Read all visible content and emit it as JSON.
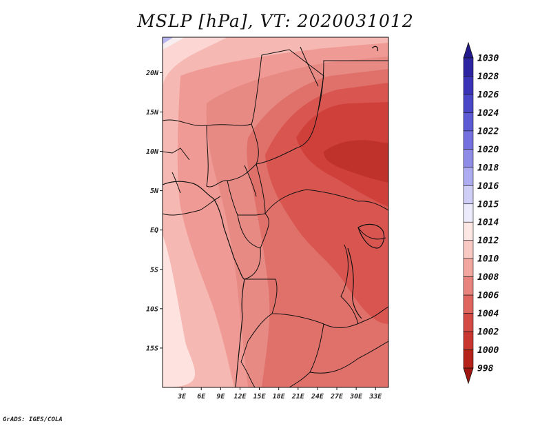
{
  "title": "MSLP [hPa], VT: 2020031012",
  "credit": "GrADS: IGES/COLA",
  "map": {
    "lat_labels": [
      "20N",
      "15N",
      "10N",
      "5N",
      "EQ",
      "5S",
      "10S",
      "15S"
    ],
    "lat_values": [
      20,
      15,
      10,
      5,
      0,
      -5,
      -10,
      -15
    ],
    "lon_labels": [
      "3E",
      "6E",
      "9E",
      "12E",
      "15E",
      "18E",
      "21E",
      "24E",
      "27E",
      "30E",
      "33E"
    ],
    "lon_values": [
      3,
      6,
      9,
      12,
      15,
      18,
      21,
      24,
      27,
      30,
      33
    ],
    "lat_range": [
      -20,
      24.5
    ],
    "lon_range": [
      0,
      35
    ]
  },
  "colorbar": {
    "labels": [
      "1030",
      "1028",
      "1026",
      "1024",
      "1022",
      "1020",
      "1018",
      "1016",
      "1015",
      "1014",
      "1012",
      "1010",
      "1008",
      "1006",
      "1004",
      "1002",
      "1000",
      "998"
    ],
    "colors": [
      "#221a8c",
      "#2d24a3",
      "#3a33b8",
      "#4a46c8",
      "#5d5ad6",
      "#7470e0",
      "#8f8ce8",
      "#aeacf0",
      "#cfcef6",
      "#ecebfb",
      "#fde7e5",
      "#f8c8c3",
      "#f2a6a0",
      "#e9837d",
      "#e06560",
      "#d64a45",
      "#c8362f",
      "#b5231b",
      "#a01610"
    ]
  }
}
